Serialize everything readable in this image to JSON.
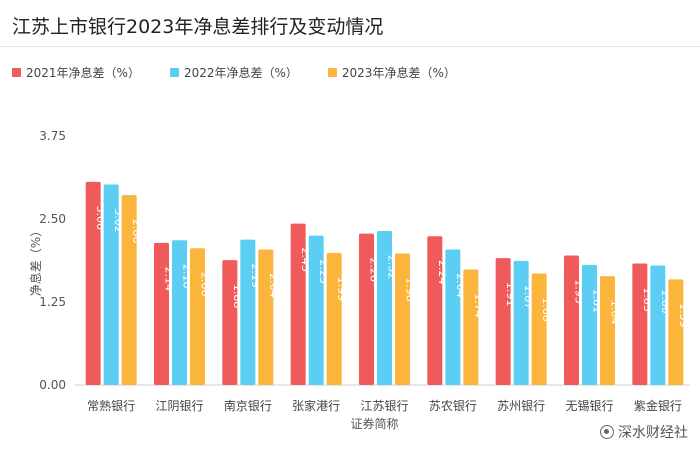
{
  "chart_data": {
    "type": "bar",
    "title": "江苏上市银行2023年净息差排行及变动情况",
    "xlabel": "证券简称",
    "ylabel": "净息差（%）",
    "ylim": [
      0,
      3.75
    ],
    "yticks": [
      "0.00",
      "1.25",
      "2.50",
      "3.75"
    ],
    "grid": false,
    "legend_position": "top-left",
    "categories": [
      "常熟银行",
      "江阴银行",
      "南京银行",
      "张家港行",
      "江苏银行",
      "苏农银行",
      "苏州银行",
      "无锡银行",
      "紫金银行"
    ],
    "series": [
      {
        "name": "2021年净息差（%）",
        "color": "#f05a5a",
        "values": [
          3.06,
          2.14,
          1.88,
          2.43,
          2.28,
          2.24,
          1.91,
          1.95,
          1.83
        ],
        "labels": [
          "3.06",
          "2.14",
          "1.88",
          "2.43",
          "2.28",
          "2.24",
          "1.91",
          "1.95",
          "1.83"
        ]
      },
      {
        "name": "2022年净息差（%）",
        "color": "#5ccdf3",
        "values": [
          3.02,
          2.18,
          2.19,
          2.25,
          2.32,
          2.04,
          1.87,
          1.81,
          1.8
        ],
        "labels": [
          "3.02",
          "2.18",
          "2.19",
          "2.25",
          "2.32",
          "2.04",
          "1.87",
          "1.81",
          "1.80"
        ]
      },
      {
        "name": "2023年净息差（%）",
        "color": "#fbb43c",
        "values": [
          2.86,
          2.06,
          2.04,
          1.99,
          1.98,
          1.74,
          1.68,
          1.64,
          1.59
        ],
        "labels": [
          "2.86",
          "2.06",
          "2.04",
          "1.99",
          "1.98",
          "1.74",
          "1.68",
          "1.64",
          "1.59"
        ]
      }
    ]
  },
  "watermark": {
    "text": "深水财经社",
    "icon": "weibo-icon"
  }
}
